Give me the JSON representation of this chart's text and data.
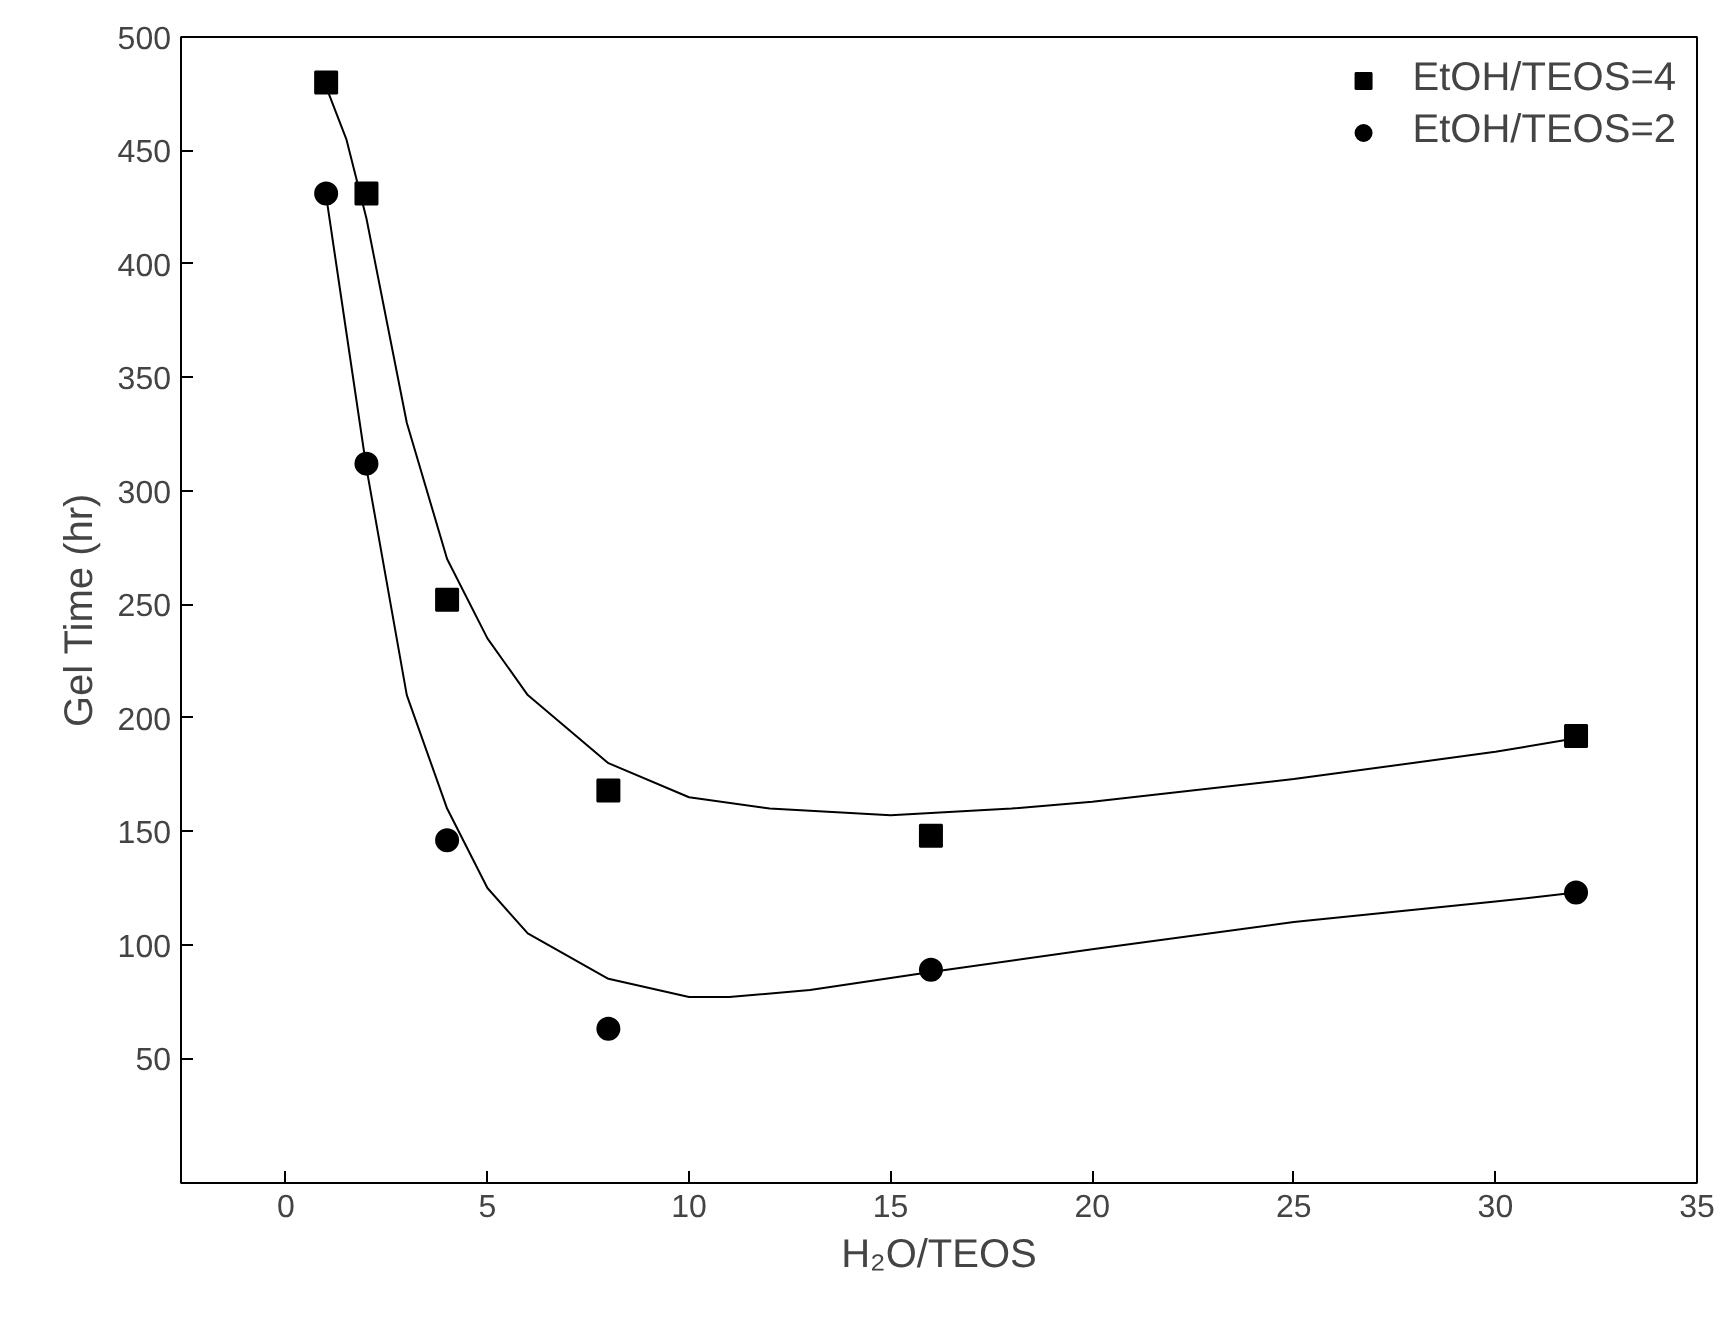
{
  "chart_data": {
    "type": "scatter",
    "xlabel": "H₂O/TEOS",
    "ylabel": "Gel Time (hr)",
    "xlim": [
      -2.6,
      35
    ],
    "ylim": [
      -5,
      500
    ],
    "xticks": [
      0,
      5,
      10,
      15,
      20,
      25,
      30,
      35
    ],
    "yticks": [
      50,
      100,
      150,
      200,
      250,
      300,
      350,
      400,
      450,
      500
    ],
    "grid": false,
    "legend": "top right",
    "series": [
      {
        "name": "EtOH/TEOS=4",
        "marker": "square",
        "color": "#000000",
        "x": [
          1,
          2,
          4,
          8,
          16,
          32
        ],
        "values": [
          480,
          431,
          252,
          168,
          148,
          192
        ]
      },
      {
        "name": "EtOH/TEOS=2",
        "marker": "circle",
        "color": "#000000",
        "x": [
          1,
          2,
          4,
          8,
          16,
          32
        ],
        "values": [
          431,
          312,
          146,
          63,
          89,
          123
        ]
      },
      {
        "type": "line",
        "marker": "none",
        "color": "#000000",
        "x": [
          1,
          1.5,
          2,
          3,
          4,
          5,
          6,
          8,
          10,
          12,
          15,
          18,
          20,
          25,
          30,
          32
        ],
        "values": [
          478,
          455,
          420,
          330,
          270,
          235,
          210,
          180,
          165,
          160,
          157,
          160,
          163,
          173,
          185,
          191
        ]
      },
      {
        "type": "line",
        "marker": "none",
        "color": "#000000",
        "x": [
          1,
          1.5,
          2,
          3,
          4,
          5,
          6,
          8,
          10,
          11,
          13,
          16,
          20,
          25,
          30,
          32
        ],
        "values": [
          430,
          370,
          310,
          210,
          160,
          125,
          105,
          85,
          77,
          77,
          80,
          88,
          98,
          110,
          119,
          123
        ]
      }
    ]
  }
}
